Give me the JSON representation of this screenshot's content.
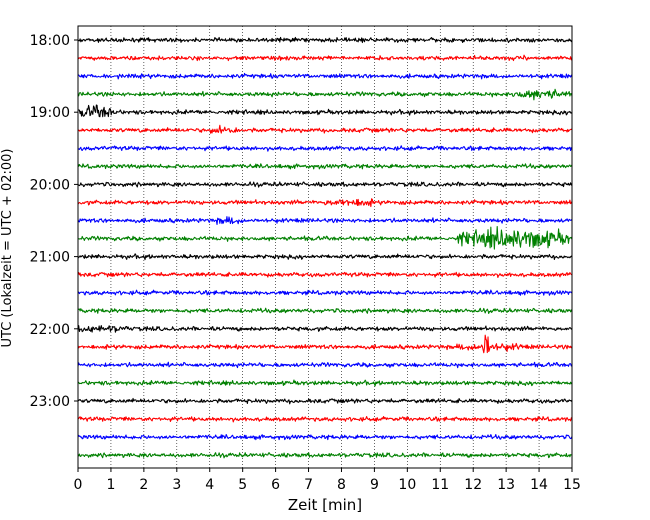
{
  "chart_data": {
    "type": "line",
    "xlabel": "Zeit  [min]",
    "ylabel": "UTC (Lokalzeit = UTC + 02:00)",
    "xlim": [
      0,
      15
    ],
    "x_ticks": [
      "0",
      "1",
      "2",
      "3",
      "4",
      "5",
      "6",
      "7",
      "8",
      "9",
      "10",
      "11",
      "12",
      "13",
      "14",
      "15"
    ],
    "y_start": "18:00",
    "y_end": "23:45",
    "trace_interval_minutes": 15,
    "y_ticks": [
      {
        "label": "18:00",
        "time": "18:00"
      },
      {
        "label": "19:00",
        "time": "19:00"
      },
      {
        "label": "20:00",
        "time": "20:00"
      },
      {
        "label": "21:00",
        "time": "21:00"
      },
      {
        "label": "22:00",
        "time": "22:00"
      },
      {
        "label": "23:00",
        "time": "23:00"
      }
    ],
    "grid": "vertical-dotted",
    "colors": [
      "#000000",
      "#ff0000",
      "#0000ff",
      "#008000"
    ],
    "events": [
      {
        "trace": "19:00",
        "minutes": [
          0,
          1.2
        ],
        "level": 0.9
      },
      {
        "trace": "18:45",
        "minutes": [
          13.2,
          14.9
        ],
        "level": 0.6
      },
      {
        "trace": "19:15",
        "minutes": [
          4.0,
          4.8
        ],
        "level": 0.5
      },
      {
        "trace": "20:15",
        "minutes": [
          7.5,
          9.0
        ],
        "level": 0.5
      },
      {
        "trace": "20:30",
        "minutes": [
          4.2,
          5.0
        ],
        "level": 0.4
      },
      {
        "trace": "20:45",
        "minutes": [
          11.5,
          14.9
        ],
        "level": 1.6
      },
      {
        "trace": "22:15",
        "minutes": [
          12.3,
          12.5
        ],
        "level": 3.0
      },
      {
        "trace": "22:15",
        "minutes": [
          11.5,
          13.5
        ],
        "level": 0.4
      },
      {
        "trace": "22:00",
        "minutes": [
          0,
          1.5
        ],
        "level": 0.35
      }
    ]
  }
}
